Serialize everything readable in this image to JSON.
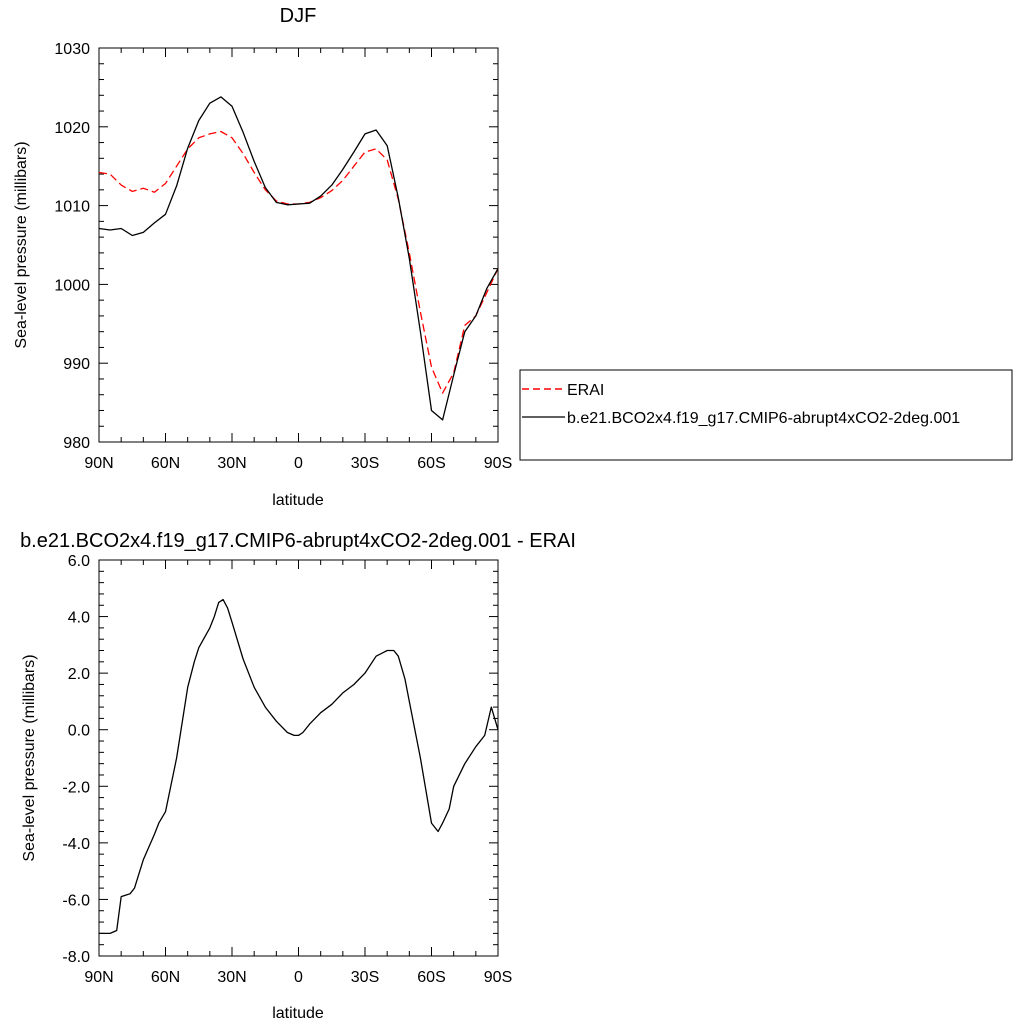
{
  "chart_data": [
    {
      "type": "line",
      "title": "DJF",
      "xlabel": "latitude",
      "ylabel": "Sea-level pressure (millibars)",
      "xlim": [
        90,
        -90
      ],
      "ylim": [
        980,
        1030
      ],
      "x_ticks": [
        90,
        60,
        30,
        0,
        -30,
        -60,
        -90
      ],
      "x_tick_labels": [
        "90N",
        "60N",
        "30N",
        "0",
        "30S",
        "60S",
        "90S"
      ],
      "y_ticks": [
        980,
        990,
        1000,
        1010,
        1020,
        1030
      ],
      "y_tick_labels": [
        "980",
        "990",
        "1000",
        "1010",
        "1020",
        "1030"
      ],
      "legend_position": "right",
      "series": [
        {
          "name": "ERAI",
          "color": "#ff0000",
          "dash": "dashed",
          "x": [
            90,
            85,
            80,
            75,
            70,
            65,
            60,
            55,
            50,
            45,
            40,
            35,
            30,
            25,
            20,
            15,
            10,
            5,
            0,
            -5,
            -10,
            -15,
            -20,
            -25,
            -30,
            -35,
            -40,
            -45,
            -50,
            -55,
            -60,
            -65,
            -70,
            -75,
            -80,
            -85,
            -90
          ],
          "values": [
            1014.2,
            1014.0,
            1012.6,
            1011.8,
            1012.2,
            1011.7,
            1012.8,
            1015.0,
            1017.2,
            1018.6,
            1019.1,
            1019.4,
            1018.6,
            1016.6,
            1014.2,
            1012.0,
            1010.6,
            1010.2,
            1010.2,
            1010.4,
            1011.0,
            1011.9,
            1013.2,
            1015.0,
            1016.8,
            1017.2,
            1015.8,
            1010.8,
            1004.0,
            996.5,
            989.5,
            986.2,
            988.8,
            994.8,
            996.0,
            999.0,
            1002.0
          ]
        },
        {
          "name": "b.e21.BCO2x4.f19_g17.CMIP6-abrupt4xCO2-2deg.001",
          "color": "#000000",
          "dash": "solid",
          "x": [
            90,
            85,
            80,
            75,
            70,
            65,
            60,
            55,
            50,
            45,
            40,
            35,
            30,
            25,
            20,
            15,
            10,
            5,
            0,
            -5,
            -10,
            -15,
            -20,
            -25,
            -30,
            -35,
            -40,
            -45,
            -50,
            -55,
            -60,
            -65,
            -70,
            -75,
            -80,
            -85,
            -90
          ],
          "values": [
            1007.1,
            1006.9,
            1007.1,
            1006.2,
            1006.6,
            1007.8,
            1008.9,
            1012.5,
            1017.3,
            1020.8,
            1023.0,
            1023.8,
            1022.6,
            1019.3,
            1015.6,
            1012.3,
            1010.4,
            1010.1,
            1010.2,
            1010.3,
            1011.2,
            1012.6,
            1014.6,
            1016.8,
            1019.1,
            1019.6,
            1017.6,
            1011.0,
            1003.3,
            994.0,
            984.0,
            982.8,
            988.5,
            994.0,
            996.0,
            999.5,
            1002.0
          ]
        }
      ]
    },
    {
      "type": "line",
      "title": "b.e21.BCO2x4.f19_g17.CMIP6-abrupt4xCO2-2deg.001 - ERAI",
      "xlabel": "latitude",
      "ylabel": "Sea-level pressure (millibars)",
      "xlim": [
        90,
        -90
      ],
      "ylim": [
        -8,
        6
      ],
      "x_ticks": [
        90,
        60,
        30,
        0,
        -30,
        -60,
        -90
      ],
      "x_tick_labels": [
        "90N",
        "60N",
        "30N",
        "0",
        "30S",
        "60S",
        "90S"
      ],
      "y_ticks": [
        -8,
        -6,
        -4,
        -2,
        0,
        2,
        4,
        6
      ],
      "y_tick_labels": [
        "-8.0",
        "-6.0",
        "-4.0",
        "-2.0",
        "0.0",
        "2.0",
        "4.0",
        "6.0"
      ],
      "series": [
        {
          "color": "#000000",
          "dash": "solid",
          "x": [
            90,
            85,
            82,
            80,
            76,
            74,
            70,
            65,
            63,
            60,
            55,
            50,
            47,
            45,
            40,
            38,
            36,
            34,
            32,
            30,
            25,
            20,
            15,
            10,
            5,
            2,
            0,
            -2,
            -5,
            -10,
            -15,
            -20,
            -25,
            -30,
            -35,
            -40,
            -43,
            -45,
            -48,
            -50,
            -55,
            -60,
            -63,
            -65,
            -68,
            -70,
            -75,
            -80,
            -84,
            -87,
            -90
          ],
          "values": [
            -7.2,
            -7.2,
            -7.1,
            -5.9,
            -5.8,
            -5.6,
            -4.6,
            -3.7,
            -3.3,
            -2.9,
            -1.0,
            1.5,
            2.4,
            2.9,
            3.6,
            4.0,
            4.5,
            4.6,
            4.3,
            3.8,
            2.5,
            1.5,
            0.8,
            0.3,
            -0.1,
            -0.2,
            -0.2,
            -0.1,
            0.2,
            0.6,
            0.9,
            1.3,
            1.6,
            2.0,
            2.6,
            2.8,
            2.8,
            2.6,
            1.8,
            1.0,
            -1.0,
            -3.3,
            -3.6,
            -3.3,
            -2.8,
            -2.0,
            -1.2,
            -0.6,
            -0.2,
            0.8,
            0.0
          ]
        }
      ]
    }
  ]
}
